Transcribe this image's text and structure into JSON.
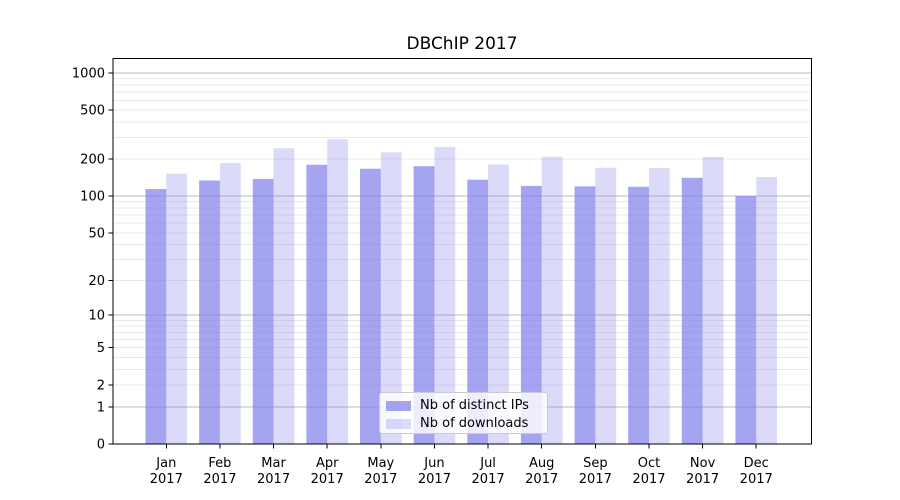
{
  "chart_data": {
    "type": "bar",
    "title": "DBChIP 2017",
    "categories": [
      "Jan",
      "Feb",
      "Mar",
      "Apr",
      "May",
      "Jun",
      "Jul",
      "Aug",
      "Sep",
      "Oct",
      "Nov",
      "Dec"
    ],
    "x_year_line": "2017",
    "series": [
      {
        "name": "Nb of distinct IPs",
        "values": [
          114,
          134,
          138,
          180,
          167,
          175,
          136,
          121,
          120,
          119,
          141,
          100
        ]
      },
      {
        "name": "Nb of downloads",
        "values": [
          152,
          186,
          245,
          290,
          227,
          251,
          181,
          209,
          170,
          169,
          208,
          143
        ]
      }
    ],
    "y_axis": {
      "scale": "log1p",
      "ticks": [
        0,
        1,
        2,
        5,
        10,
        20,
        50,
        100,
        200,
        500,
        1000
      ],
      "major_gridlines": [
        1,
        10,
        100,
        1000
      ],
      "ylim": [
        0,
        1300
      ]
    },
    "legend": {
      "location": "bottom-center"
    },
    "grid": true
  },
  "style": {
    "bar_base_color": "#7d7deb",
    "series_fill_opacity": [
      0.7,
      0.28
    ],
    "bar_color_rendered": [
      "#a4a4f1",
      "#dbdbf9"
    ],
    "major_grid_color": "#bbbbbb",
    "minor_grid_color": "#e9e9e9",
    "axis_color": "#000000",
    "background": "#ffffff"
  }
}
